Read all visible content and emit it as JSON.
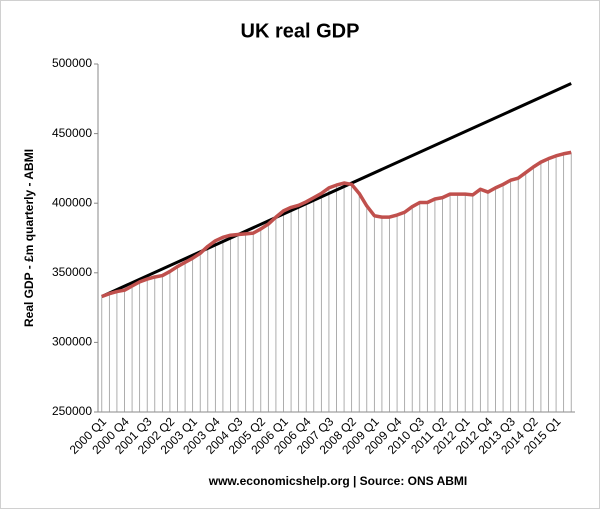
{
  "chart_data": {
    "type": "line",
    "title": "UK real GDP",
    "y_label": "Real GDP - £m quarterly - ABMI",
    "footer": "www.economicshelp.org | Source: ONS ABMI",
    "categories": [
      "2000 Q1",
      null,
      null,
      "2000 Q4",
      null,
      null,
      "2001 Q3",
      null,
      null,
      "2002 Q2",
      null,
      null,
      "2003 Q1",
      null,
      null,
      "2003 Q4",
      null,
      null,
      "2004 Q3",
      null,
      null,
      "2005 Q2",
      null,
      null,
      "2006 Q1",
      null,
      null,
      "2006 Q4",
      null,
      null,
      "2007 Q3",
      null,
      null,
      "2008 Q2",
      null,
      null,
      "2009 Q1",
      null,
      null,
      "2009 Q4",
      null,
      null,
      "2010 Q3",
      null,
      null,
      "2011 Q2",
      null,
      null,
      "2012 Q1",
      null,
      null,
      "2012 Q4",
      null,
      null,
      "2013 Q3",
      null,
      null,
      "2014 Q2",
      null,
      null,
      "2015 Q1",
      null,
      null
    ],
    "series": [
      {
        "color": "#c0504d",
        "values": [
          333000,
          335000,
          336500,
          337500,
          340500,
          343500,
          345500,
          347000,
          348000,
          351000,
          354500,
          357500,
          360500,
          364000,
          369000,
          373000,
          375500,
          377000,
          377500,
          378000,
          378500,
          381500,
          385000,
          390000,
          394500,
          397000,
          398500,
          401000,
          404000,
          407000,
          411000,
          413000,
          414500,
          413500,
          407000,
          398000,
          391000,
          390000,
          390000,
          391500,
          393500,
          397500,
          400500,
          400500,
          403000,
          404000,
          406500,
          406500,
          406500,
          406000,
          410000,
          408000,
          411000,
          413500,
          416500,
          418000,
          422000,
          426000,
          429500,
          432000,
          434000,
          435500,
          436500
        ]
      }
    ],
    "trendline": {
      "color": "#000000",
      "start": 333000,
      "end": 486000
    },
    "drop_lines": true,
    "ylim": [
      250000,
      500000
    ],
    "yticks": [
      250000,
      300000,
      350000,
      400000,
      450000,
      500000
    ],
    "grid": false
  }
}
